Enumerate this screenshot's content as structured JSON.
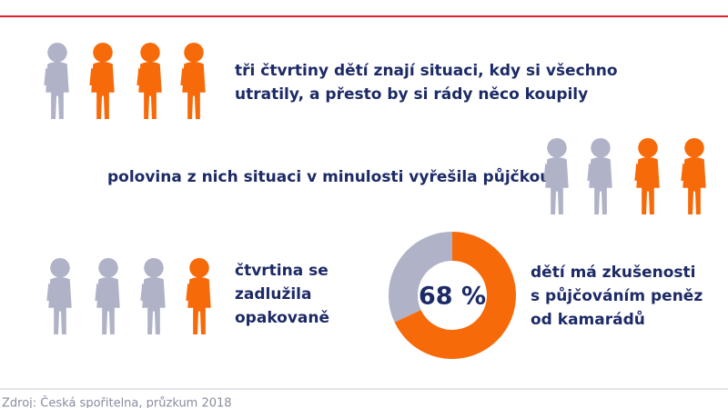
{
  "rows": [
    {
      "text": [
        "tři čtvrtiny dětí znají situaci, kdy si všechno",
        "utratily, a přesto by si rády něco koupily"
      ]
    },
    {
      "text": [
        "polovina z nich situaci v minulosti vyřešila půjčkou"
      ]
    },
    {
      "text": [
        "čtvrtina se",
        "zadlužila",
        "opakovaně"
      ]
    }
  ],
  "donut": {
    "value": 68,
    "label": "68 %",
    "color": "#f76a0a",
    "rest_color": "#b0b2c8",
    "text": [
      "dětí má zkušenosti",
      "s půjčováním peněz",
      "od kamarádů"
    ]
  },
  "source": "Zdroj: Česká spořitelna, průzkum 2018"
}
